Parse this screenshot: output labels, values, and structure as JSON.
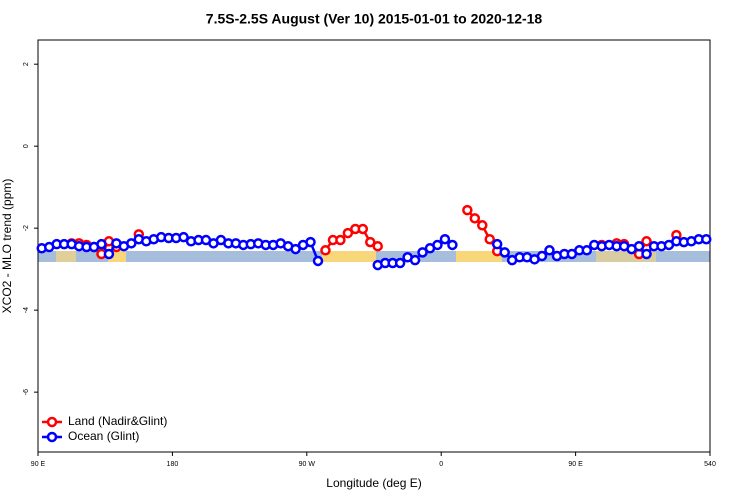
{
  "chart_data": {
    "type": "line",
    "title": "7.5S-2.5S August (Ver 10)   2015-01-01 to 2020-12-18",
    "xlabel": "Longitude (deg E)",
    "ylabel": "XCO2 - MLO trend (ppm)",
    "xlim": [
      90,
      540
    ],
    "xticks": [
      {
        "value": 90,
        "label": "90 E"
      },
      180,
      {
        "value": 270,
        "label": "90 W"
      },
      {
        "value": 360,
        "label": "0"
      },
      {
        "value": 450,
        "label": "90 E"
      },
      540
    ],
    "ylim": [
      -7.46,
      2.59
    ],
    "yticks": [
      2,
      0,
      -2,
      -4,
      -6
    ],
    "legend": "bottomleft",
    "x": [
      92.5,
      97.5,
      102.5,
      107.5,
      112.5,
      117.5,
      122.5,
      127.5,
      132.5,
      137.5,
      142.5,
      147.5,
      152.5,
      157.5,
      162.5,
      167.5,
      172.5,
      177.5,
      182.5,
      187.5,
      192.5,
      197.5,
      202.5,
      207.5,
      212.5,
      217.5,
      222.5,
      227.5,
      232.5,
      237.5,
      242.5,
      247.5,
      252.5,
      257.5,
      262.5,
      267.5,
      272.5,
      277.5,
      282.5,
      287.5,
      292.5,
      297.5,
      302.5,
      307.5,
      312.5,
      317.5,
      322.5,
      327.5,
      332.5,
      337.5,
      342.5,
      347.5,
      352.5,
      357.5,
      362.5,
      367.5,
      372.5,
      377.5,
      382.5,
      387.5,
      392.5,
      397.5,
      402.5,
      407.5,
      412.5,
      417.5,
      422.5,
      427.5,
      432.5,
      437.5,
      442.5,
      447.5,
      452.5,
      457.5,
      462.5,
      467.5,
      472.5,
      477.5,
      482.5,
      487.5,
      492.5,
      497.5,
      502.5,
      507.5,
      512.5,
      517.5,
      522.5,
      527.5,
      532.5,
      537.5
    ],
    "series": [
      {
        "name": "Land (Nadir&Glint)",
        "color": "#ff0000",
        "values": [
          null,
          null,
          null,
          null,
          -2.37,
          -2.37,
          -2.41,
          -2.46,
          -2.63,
          -2.32,
          -2.46,
          null,
          null,
          -2.15,
          null,
          null,
          null,
          null,
          null,
          null,
          null,
          null,
          null,
          null,
          null,
          null,
          null,
          null,
          null,
          null,
          null,
          null,
          null,
          null,
          null,
          null,
          null,
          null,
          -2.54,
          -2.29,
          -2.29,
          -2.12,
          -2.02,
          -2.02,
          -2.34,
          -2.44,
          null,
          null,
          null,
          null,
          null,
          null,
          null,
          null,
          null,
          null,
          null,
          -1.56,
          -1.76,
          -1.93,
          -2.27,
          -2.56,
          null,
          null,
          null,
          null,
          null,
          null,
          null,
          null,
          null,
          null,
          null,
          null,
          null,
          -2.41,
          null,
          -2.37,
          -2.39,
          null,
          -2.63,
          -2.32,
          null,
          null,
          null,
          -2.17,
          null,
          null,
          null,
          null
        ]
      },
      {
        "name": "Ocean (Glint)",
        "color": "#0000ff",
        "values": [
          -2.49,
          -2.46,
          -2.39,
          -2.39,
          -2.39,
          -2.44,
          -2.46,
          -2.46,
          -2.39,
          -2.63,
          -2.37,
          -2.44,
          -2.37,
          -2.27,
          -2.32,
          -2.27,
          -2.22,
          -2.24,
          -2.24,
          -2.22,
          -2.32,
          -2.29,
          -2.29,
          -2.37,
          -2.29,
          -2.37,
          -2.37,
          -2.41,
          -2.39,
          -2.37,
          -2.41,
          -2.41,
          -2.37,
          -2.44,
          -2.51,
          -2.41,
          -2.34,
          -2.8,
          null,
          null,
          null,
          null,
          null,
          null,
          null,
          -2.9,
          -2.85,
          -2.85,
          -2.85,
          -2.71,
          -2.78,
          -2.59,
          -2.49,
          -2.41,
          -2.27,
          -2.41,
          null,
          null,
          null,
          null,
          null,
          -2.39,
          -2.59,
          -2.78,
          -2.71,
          -2.71,
          -2.76,
          -2.68,
          -2.54,
          -2.68,
          -2.63,
          -2.63,
          -2.54,
          -2.54,
          -2.41,
          -2.44,
          -2.41,
          -2.44,
          -2.44,
          -2.51,
          -2.44,
          -2.63,
          -2.44,
          -2.44,
          -2.41,
          -2.32,
          -2.34,
          -2.32,
          -2.27,
          -2.27
        ]
      }
    ]
  }
}
